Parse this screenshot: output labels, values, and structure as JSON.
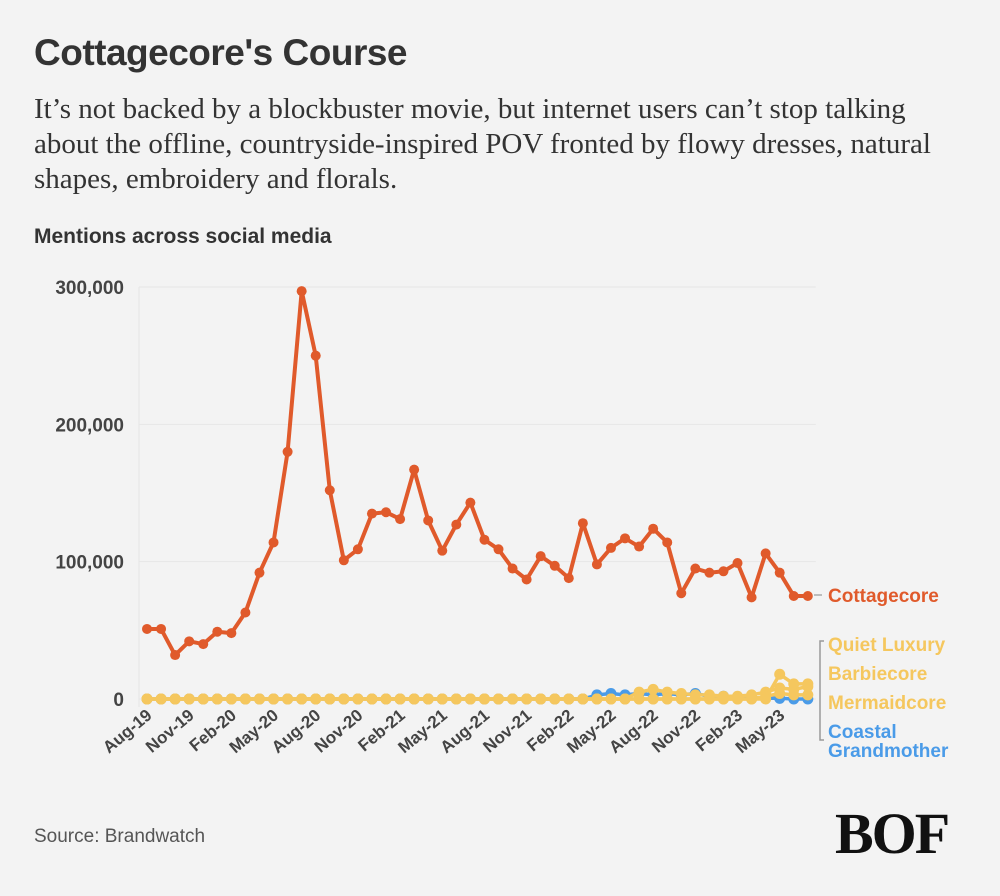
{
  "header": {
    "title": "Cottagecore's Course",
    "subtitle": "It’s not backed by a blockbuster movie, but internet users can’t stop talking about the offline, countryside-inspired POV fronted by flowy dresses, natural shapes, embroidery and florals.",
    "chart_label": "Mentions across social media"
  },
  "footer": {
    "source": "Source: Brandwatch",
    "logo": "BOF"
  },
  "chart_data": {
    "type": "line",
    "title": "Mentions across social media",
    "xlabel": "",
    "ylabel": "",
    "ylim": [
      0,
      300000
    ],
    "yticks": [
      0,
      100000,
      200000,
      300000
    ],
    "ytick_labels": [
      "0",
      "100,000",
      "200,000",
      "300,000"
    ],
    "grid": true,
    "legend": "right (inline labels)",
    "x": [
      "Aug-19",
      "Sep-19",
      "Oct-19",
      "Nov-19",
      "Dec-19",
      "Jan-20",
      "Feb-20",
      "Mar-20",
      "Apr-20",
      "May-20",
      "Jun-20",
      "Jul-20",
      "Aug-20",
      "Sep-20",
      "Oct-20",
      "Nov-20",
      "Dec-20",
      "Jan-21",
      "Feb-21",
      "Mar-21",
      "Apr-21",
      "May-21",
      "Jun-21",
      "Jul-21",
      "Aug-21",
      "Sep-21",
      "Oct-21",
      "Nov-21",
      "Dec-21",
      "Jan-22",
      "Feb-22",
      "Mar-22",
      "Apr-22",
      "May-22",
      "Jun-22",
      "Jul-22",
      "Aug-22",
      "Sep-22",
      "Oct-22",
      "Nov-22",
      "Dec-22",
      "Jan-23",
      "Feb-23",
      "Mar-23",
      "Apr-23",
      "May-23",
      "Jun-23",
      "Jul-23"
    ],
    "xtick_labels": [
      "Aug-19",
      "Nov-19",
      "Feb-20",
      "May-20",
      "Aug-20",
      "Nov-20",
      "Feb-21",
      "May-21",
      "Aug-21",
      "Nov-21",
      "Feb-22",
      "May-22",
      "Aug-22",
      "Nov-22",
      "Feb-23",
      "May-23"
    ],
    "series": [
      {
        "name": "Coastal Grandmother",
        "color": "#4a9be8",
        "values": [
          0,
          0,
          0,
          0,
          0,
          0,
          0,
          0,
          0,
          0,
          0,
          0,
          0,
          0,
          0,
          0,
          0,
          0,
          0,
          0,
          0,
          0,
          0,
          0,
          0,
          0,
          0,
          0,
          0,
          0,
          0,
          0,
          3000,
          4000,
          3000,
          4000,
          3000,
          4000,
          3000,
          4000,
          2000,
          2000,
          1000,
          1000,
          500,
          500,
          0,
          0
        ]
      },
      {
        "name": "Mermaidcore",
        "color": "#f5c75e",
        "values": [
          0,
          0,
          0,
          0,
          0,
          0,
          0,
          0,
          0,
          0,
          0,
          0,
          0,
          0,
          0,
          0,
          0,
          0,
          0,
          0,
          0,
          0,
          0,
          0,
          0,
          0,
          0,
          0,
          0,
          0,
          0,
          0,
          0,
          0,
          0,
          0,
          0,
          0,
          0,
          0,
          0,
          0,
          0,
          0,
          2000,
          4000,
          3000,
          3000
        ]
      },
      {
        "name": "Barbiecore",
        "color": "#f5c75e",
        "values": [
          0,
          0,
          0,
          0,
          0,
          0,
          0,
          0,
          0,
          0,
          0,
          0,
          0,
          0,
          0,
          0,
          0,
          0,
          0,
          0,
          0,
          0,
          0,
          0,
          0,
          0,
          0,
          0,
          0,
          0,
          0,
          0,
          0,
          0,
          0,
          5000,
          7000,
          5000,
          4000,
          3000,
          3000,
          2000,
          2000,
          3000,
          5000,
          8000,
          7000,
          9000
        ]
      },
      {
        "name": "Quiet Luxury",
        "color": "#f5c75e",
        "values": [
          0,
          0,
          0,
          0,
          0,
          0,
          0,
          0,
          0,
          0,
          0,
          0,
          0,
          0,
          0,
          0,
          0,
          0,
          0,
          0,
          0,
          0,
          0,
          0,
          0,
          0,
          0,
          0,
          0,
          0,
          0,
          0,
          0,
          0,
          0,
          0,
          0,
          0,
          0,
          0,
          0,
          0,
          0,
          0,
          0,
          18000,
          11000,
          11000
        ]
      },
      {
        "name": "Cottagecore",
        "color": "#e05a2b",
        "values": [
          51000,
          51000,
          32000,
          42000,
          40000,
          49000,
          48000,
          63000,
          92000,
          114000,
          180000,
          297000,
          250000,
          152000,
          101000,
          109000,
          135000,
          136000,
          131000,
          167000,
          130000,
          108000,
          127000,
          143000,
          116000,
          109000,
          95000,
          87000,
          104000,
          97000,
          88000,
          128000,
          98000,
          110000,
          117000,
          111000,
          124000,
          114000,
          77000,
          95000,
          92000,
          93000,
          99000,
          74000,
          106000,
          92000,
          75000,
          75000
        ]
      }
    ]
  }
}
